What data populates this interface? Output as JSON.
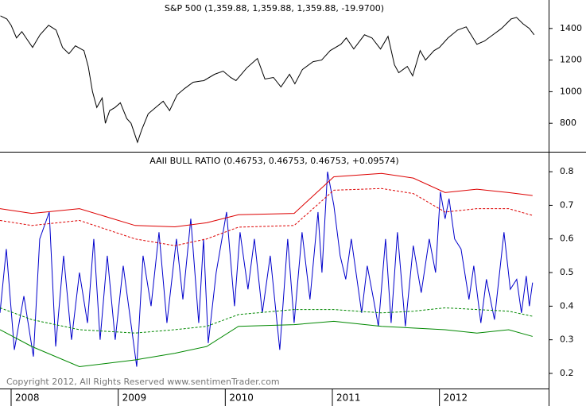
{
  "chart_data": [
    {
      "type": "line",
      "title": "S&P 500 (1,359.88, 1,359.88, 1,359.88, -19.9700)",
      "xlim": [
        2007.896,
        2013.02
      ],
      "ylim": [
        620,
        1580
      ],
      "yticks": [
        800,
        1000,
        1200,
        1400
      ],
      "grid": false,
      "series": [
        {
          "color": "#000000",
          "x": [
            2007.9,
            2007.96,
            2008.0,
            2008.05,
            2008.1,
            2008.15,
            2008.2,
            2008.27,
            2008.35,
            2008.42,
            2008.48,
            2008.54,
            2008.6,
            2008.68,
            2008.72,
            2008.76,
            2008.8,
            2008.85,
            2008.88,
            2008.92,
            2008.97,
            2009.02,
            2009.08,
            2009.12,
            2009.18,
            2009.22,
            2009.28,
            2009.35,
            2009.42,
            2009.48,
            2009.55,
            2009.62,
            2009.7,
            2009.8,
            2009.9,
            2009.98,
            2010.05,
            2010.1,
            2010.2,
            2010.3,
            2010.37,
            2010.45,
            2010.52,
            2010.6,
            2010.65,
            2010.72,
            2010.82,
            2010.9,
            2010.98,
            2011.08,
            2011.13,
            2011.2,
            2011.3,
            2011.37,
            2011.45,
            2011.52,
            2011.58,
            2011.62,
            2011.7,
            2011.75,
            2011.82,
            2011.87,
            2011.95,
            2012.0,
            2012.08,
            2012.17,
            2012.25,
            2012.35,
            2012.42,
            2012.5,
            2012.58,
            2012.67,
            2012.72,
            2012.78,
            2012.84,
            2012.885
          ],
          "values": [
            1480,
            1460,
            1420,
            1340,
            1380,
            1330,
            1280,
            1360,
            1420,
            1390,
            1280,
            1240,
            1290,
            1260,
            1160,
            1000,
            900,
            960,
            800,
            880,
            900,
            930,
            830,
            800,
            680,
            760,
            860,
            900,
            940,
            880,
            980,
            1020,
            1060,
            1070,
            1110,
            1130,
            1090,
            1070,
            1150,
            1210,
            1080,
            1090,
            1030,
            1110,
            1050,
            1140,
            1190,
            1200,
            1260,
            1300,
            1340,
            1270,
            1360,
            1340,
            1270,
            1350,
            1170,
            1120,
            1160,
            1100,
            1260,
            1200,
            1260,
            1280,
            1340,
            1390,
            1410,
            1300,
            1320,
            1360,
            1400,
            1460,
            1470,
            1430,
            1400,
            1359.88
          ]
        }
      ]
    },
    {
      "type": "line",
      "title": "AAII BULL RATIO (0.46753, 0.46753, 0.46753, +0.09574)",
      "annotation": "Copyright 2012, All Rights Reserved  www.sentimenTrader.com",
      "xlim": [
        2007.896,
        2013.02
      ],
      "xticks": [
        2008,
        2009,
        2010,
        2011,
        2012
      ],
      "ylim": [
        0.155,
        0.857
      ],
      "yticks": [
        0.2,
        0.3,
        0.4,
        0.5,
        0.6,
        0.7,
        0.8
      ],
      "grid": false,
      "series": [
        {
          "color": "#0000cc",
          "x": [
            2007.896,
            2007.955,
            2008.03,
            2008.119,
            2008.208,
            2008.267,
            2008.356,
            2008.416,
            2008.49,
            2008.564,
            2008.638,
            2008.713,
            2008.772,
            2008.831,
            2008.898,
            2008.972,
            2009.047,
            2009.173,
            2009.232,
            2009.307,
            2009.381,
            2009.455,
            2009.544,
            2009.604,
            2009.678,
            2009.752,
            2009.797,
            2009.841,
            2009.915,
            2010.012,
            2010.086,
            2010.138,
            2010.212,
            2010.272,
            2010.346,
            2010.42,
            2010.509,
            2010.583,
            2010.643,
            2010.717,
            2010.791,
            2010.866,
            2010.903,
            2010.955,
            2011.014,
            2011.073,
            2011.125,
            2011.177,
            2011.274,
            2011.326,
            2011.385,
            2011.43,
            2011.497,
            2011.549,
            2011.608,
            2011.682,
            2011.756,
            2011.83,
            2011.905,
            2011.964,
            2012.009,
            2012.053,
            2012.09,
            2012.142,
            2012.202,
            2012.276,
            2012.321,
            2012.387,
            2012.439,
            2012.514,
            2012.603,
            2012.662,
            2012.722,
            2012.766,
            2012.811,
            2012.84,
            2012.87
          ],
          "values": [
            0.38,
            0.57,
            0.27,
            0.43,
            0.25,
            0.6,
            0.68,
            0.28,
            0.55,
            0.3,
            0.5,
            0.35,
            0.6,
            0.3,
            0.55,
            0.3,
            0.52,
            0.22,
            0.55,
            0.4,
            0.62,
            0.35,
            0.6,
            0.42,
            0.66,
            0.35,
            0.6,
            0.29,
            0.5,
            0.68,
            0.4,
            0.62,
            0.45,
            0.6,
            0.38,
            0.55,
            0.27,
            0.6,
            0.35,
            0.62,
            0.42,
            0.68,
            0.5,
            0.8,
            0.7,
            0.55,
            0.48,
            0.6,
            0.38,
            0.52,
            0.42,
            0.34,
            0.6,
            0.35,
            0.62,
            0.34,
            0.58,
            0.44,
            0.6,
            0.5,
            0.74,
            0.66,
            0.72,
            0.6,
            0.57,
            0.42,
            0.52,
            0.35,
            0.48,
            0.36,
            0.62,
            0.45,
            0.48,
            0.38,
            0.49,
            0.4,
            0.47
          ]
        },
        {
          "color": "#dd0000",
          "style": "solid",
          "x": [
            2007.896,
            2008.193,
            2008.638,
            2009.158,
            2009.529,
            2009.826,
            2010.123,
            2010.643,
            2011.014,
            2011.46,
            2011.756,
            2012.053,
            2012.35,
            2012.647,
            2012.87
          ],
          "values": [
            0.69,
            0.676,
            0.69,
            0.64,
            0.636,
            0.648,
            0.672,
            0.676,
            0.785,
            0.795,
            0.781,
            0.738,
            0.748,
            0.738,
            0.729
          ]
        },
        {
          "color": "#dd0000",
          "style": "dashed",
          "x": [
            2007.896,
            2008.193,
            2008.638,
            2009.158,
            2009.529,
            2009.826,
            2010.123,
            2010.643,
            2011.014,
            2011.46,
            2011.756,
            2012.053,
            2012.35,
            2012.647,
            2012.87
          ],
          "values": [
            0.655,
            0.64,
            0.655,
            0.6,
            0.58,
            0.6,
            0.635,
            0.64,
            0.745,
            0.75,
            0.735,
            0.68,
            0.69,
            0.69,
            0.67
          ]
        },
        {
          "color": "#008800",
          "style": "dashed",
          "x": [
            2007.896,
            2008.193,
            2008.638,
            2009.158,
            2009.529,
            2009.826,
            2010.123,
            2010.643,
            2011.014,
            2011.46,
            2011.756,
            2012.053,
            2012.35,
            2012.647,
            2012.87
          ],
          "values": [
            0.395,
            0.36,
            0.33,
            0.32,
            0.33,
            0.34,
            0.375,
            0.39,
            0.39,
            0.38,
            0.385,
            0.395,
            0.39,
            0.385,
            0.37
          ]
        },
        {
          "color": "#008800",
          "style": "solid",
          "x": [
            2007.896,
            2008.193,
            2008.638,
            2009.158,
            2009.529,
            2009.826,
            2010.123,
            2010.643,
            2011.014,
            2011.46,
            2011.756,
            2012.053,
            2012.35,
            2012.647,
            2012.87
          ],
          "values": [
            0.33,
            0.28,
            0.22,
            0.24,
            0.26,
            0.28,
            0.34,
            0.345,
            0.355,
            0.34,
            0.335,
            0.33,
            0.32,
            0.33,
            0.31
          ]
        }
      ]
    }
  ]
}
